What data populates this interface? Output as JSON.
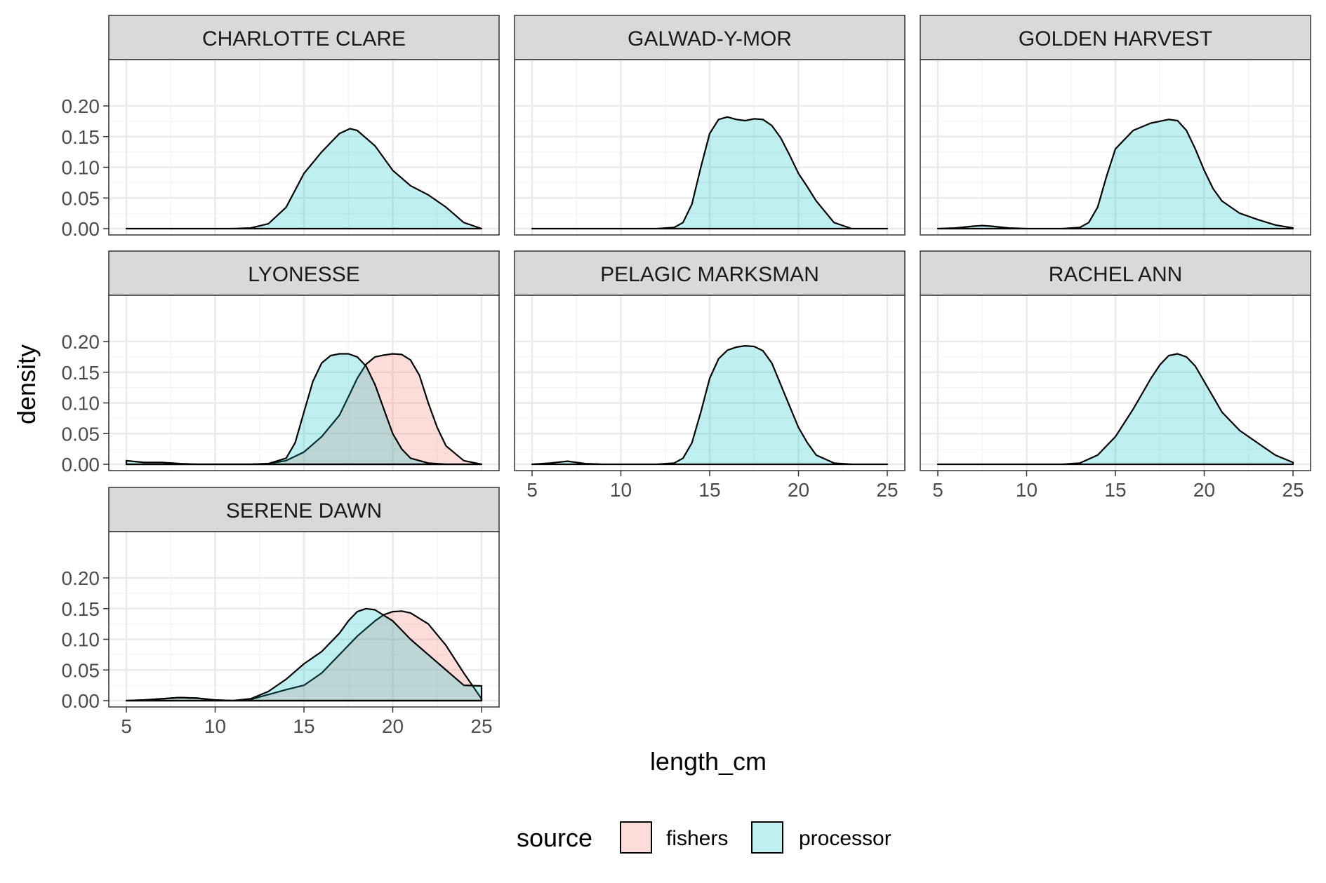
{
  "chart_data": {
    "type": "area",
    "subtype": "faceted density",
    "xlabel": "length_cm",
    "ylabel": "density",
    "xlim": [
      5,
      25
    ],
    "ylim": [
      0,
      0.2
    ],
    "x_ticks": [
      5,
      10,
      15,
      20,
      25
    ],
    "y_ticks": [
      0.0,
      0.05,
      0.1,
      0.15,
      0.2
    ],
    "x_tick_labels": [
      "5",
      "10",
      "15",
      "20",
      "25"
    ],
    "y_tick_labels": [
      "0.00",
      "0.05",
      "0.10",
      "0.15",
      "0.20"
    ],
    "grid": true,
    "theme": "bw",
    "legend": {
      "title": "source",
      "position": "bottom",
      "entries": [
        {
          "name": "fishers",
          "color": "#F8766D"
        },
        {
          "name": "processor",
          "color": "#00BFC4"
        }
      ]
    },
    "fill_alpha": 0.25,
    "facets": [
      {
        "name": "CHARLOTTE CLARE",
        "series": [
          {
            "name": "processor",
            "x": [
              5,
              8,
              10,
              11,
              12,
              13,
              14,
              15,
              16,
              17,
              17.6,
              18,
              19,
              20,
              21,
              22,
              23,
              24,
              25
            ],
            "y": [
              0,
              0,
              0,
              0,
              0.001,
              0.008,
              0.035,
              0.09,
              0.125,
              0.155,
              0.163,
              0.16,
              0.135,
              0.095,
              0.07,
              0.055,
              0.035,
              0.01,
              0
            ]
          }
        ]
      },
      {
        "name": "GALWAD-Y-MOR",
        "series": [
          {
            "name": "processor",
            "x": [
              5,
              10,
              12,
              13,
              13.5,
              14,
              14.5,
              15,
              15.5,
              16,
              16.5,
              17,
              17.5,
              18,
              18.5,
              19,
              19.5,
              20,
              20.5,
              21,
              22,
              23,
              25
            ],
            "y": [
              0,
              0,
              0,
              0.002,
              0.01,
              0.04,
              0.1,
              0.155,
              0.178,
              0.182,
              0.178,
              0.176,
              0.179,
              0.178,
              0.168,
              0.148,
              0.12,
              0.09,
              0.068,
              0.045,
              0.01,
              0,
              0
            ]
          }
        ]
      },
      {
        "name": "GOLDEN HARVEST",
        "series": [
          {
            "name": "processor",
            "x": [
              5,
              6,
              7,
              7.5,
              8,
              9,
              10,
              11,
              12,
              13,
              13.5,
              14,
              14.5,
              15,
              16,
              17,
              18,
              18.5,
              19,
              19.5,
              20,
              20.5,
              21,
              22,
              23,
              24,
              25
            ],
            "y": [
              0,
              0.001,
              0.004,
              0.005,
              0.004,
              0.001,
              0,
              0,
              0,
              0.002,
              0.01,
              0.035,
              0.085,
              0.13,
              0.16,
              0.172,
              0.178,
              0.176,
              0.16,
              0.13,
              0.095,
              0.065,
              0.045,
              0.025,
              0.015,
              0.006,
              0.001
            ]
          }
        ]
      },
      {
        "name": "LYONESSE",
        "series": [
          {
            "name": "fishers",
            "x": [
              5,
              8,
              10,
              12,
              13,
              14,
              15,
              16,
              17,
              17.5,
              18,
              18.5,
              19,
              19.5,
              20,
              20.5,
              21,
              21.5,
              22,
              22.5,
              23,
              24,
              25
            ],
            "y": [
              0,
              0,
              0,
              0,
              0.001,
              0.006,
              0.02,
              0.045,
              0.08,
              0.11,
              0.14,
              0.163,
              0.175,
              0.178,
              0.18,
              0.179,
              0.17,
              0.145,
              0.1,
              0.06,
              0.03,
              0.006,
              0
            ]
          },
          {
            "name": "processor",
            "x": [
              5,
              6,
              7,
              8,
              9,
              10,
              11,
              12,
              13,
              14,
              14.5,
              15,
              15.5,
              16,
              16.5,
              17,
              17.5,
              18,
              18.5,
              19,
              19.5,
              20,
              20.5,
              21,
              22,
              23,
              25
            ],
            "y": [
              0.006,
              0.003,
              0.003,
              0.001,
              0,
              0,
              0,
              0,
              0.001,
              0.01,
              0.035,
              0.085,
              0.135,
              0.165,
              0.177,
              0.18,
              0.18,
              0.175,
              0.16,
              0.13,
              0.09,
              0.05,
              0.025,
              0.01,
              0.002,
              0,
              0
            ]
          }
        ]
      },
      {
        "name": "PELAGIC MARKSMAN",
        "series": [
          {
            "name": "processor",
            "x": [
              5,
              6,
              7,
              8,
              9,
              10,
              11,
              12,
              13,
              13.5,
              14,
              14.5,
              15,
              15.5,
              16,
              16.5,
              17,
              17.5,
              18,
              18.5,
              19,
              19.5,
              20,
              20.5,
              21,
              22,
              23,
              25
            ],
            "y": [
              0,
              0.002,
              0.005,
              0.001,
              0,
              0,
              0,
              0,
              0.002,
              0.01,
              0.035,
              0.085,
              0.14,
              0.172,
              0.186,
              0.191,
              0.193,
              0.192,
              0.185,
              0.165,
              0.13,
              0.095,
              0.06,
              0.035,
              0.015,
              0.002,
              0,
              0
            ]
          }
        ]
      },
      {
        "name": "RACHEL ANN",
        "series": [
          {
            "name": "processor",
            "x": [
              5,
              10,
              12,
              13,
              14,
              15,
              16,
              17,
              17.5,
              18,
              18.5,
              19,
              19.5,
              20,
              20.5,
              21,
              22,
              23,
              24,
              25
            ],
            "y": [
              0,
              0,
              0,
              0.002,
              0.015,
              0.045,
              0.09,
              0.14,
              0.162,
              0.177,
              0.18,
              0.175,
              0.16,
              0.135,
              0.11,
              0.085,
              0.055,
              0.035,
              0.015,
              0.003
            ]
          }
        ]
      },
      {
        "name": "SERENE DAWN",
        "series": [
          {
            "name": "fishers",
            "x": [
              5,
              6,
              7,
              8,
              9,
              10,
              11,
              12,
              13,
              14,
              15,
              16,
              17,
              18,
              19,
              19.5,
              20,
              20.5,
              21,
              22,
              23,
              24,
              25
            ],
            "y": [
              0,
              0.001,
              0.003,
              0.005,
              0.004,
              0.001,
              0,
              0.002,
              0.01,
              0.018,
              0.025,
              0.045,
              0.075,
              0.105,
              0.13,
              0.14,
              0.145,
              0.146,
              0.143,
              0.125,
              0.09,
              0.045,
              0.003
            ]
          },
          {
            "name": "processor",
            "x": [
              5,
              6,
              7,
              8,
              9,
              10,
              11,
              12,
              13,
              14,
              15,
              16,
              17,
              17.5,
              18,
              18.5,
              19,
              20,
              21,
              22,
              23,
              24,
              25
            ],
            "y": [
              0,
              0.001,
              0.003,
              0.005,
              0.004,
              0.001,
              0,
              0.003,
              0.015,
              0.035,
              0.06,
              0.08,
              0.11,
              0.13,
              0.145,
              0.15,
              0.148,
              0.13,
              0.1,
              0.075,
              0.05,
              0.025,
              0.024
            ]
          }
        ]
      }
    ]
  }
}
